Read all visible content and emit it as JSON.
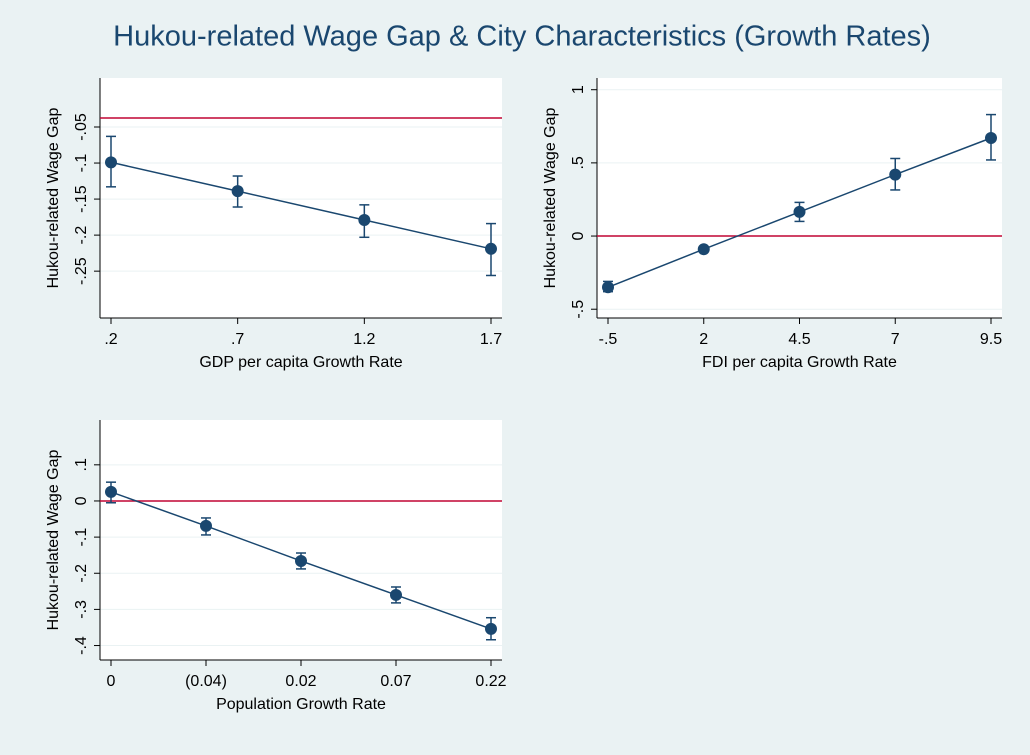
{
  "title": "Hukou-related Wage Gap & City Characteristics (Growth Rates)",
  "chart_data": [
    {
      "type": "line",
      "categories": [
        ".2",
        ".7",
        "1.2",
        "1.7"
      ],
      "xlabel": "GDP per capita Growth Rate",
      "ylabel": "Hukou-related Wage Gap",
      "values": [
        -0.099,
        -0.139,
        -0.179,
        -0.219
      ],
      "lower": [
        -0.133,
        -0.161,
        -0.203,
        -0.256
      ],
      "upper": [
        -0.063,
        -0.118,
        -0.158,
        -0.184
      ],
      "color": "#1a476f",
      "reference_line": -0.0375,
      "reference_color": "#c10534",
      "ylim": [
        -0.315,
        0.018
      ],
      "yticks": [
        {
          "value": -0.25,
          "label": "-.25"
        },
        {
          "value": -0.2,
          "label": "-.2"
        },
        {
          "value": -0.15,
          "label": "-.15"
        },
        {
          "value": -0.1,
          "label": "-.1"
        },
        {
          "value": -0.05,
          "label": "-.05"
        }
      ],
      "grid": true
    },
    {
      "type": "line",
      "categories": [
        "-.5",
        "2",
        "4.5",
        "7",
        "9.5"
      ],
      "xlabel": "FDI per capita Growth Rate",
      "ylabel": "Hukou-related Wage Gap",
      "values": [
        -0.35,
        -0.09,
        0.165,
        0.42,
        0.67
      ],
      "lower": [
        -0.38,
        -0.1,
        0.1,
        0.315,
        0.52
      ],
      "upper": [
        -0.31,
        -0.08,
        0.23,
        0.53,
        0.83
      ],
      "color": "#1a476f",
      "reference_line": 0,
      "reference_color": "#c10534",
      "ylim": [
        -0.56,
        1.08
      ],
      "yticks": [
        {
          "value": -0.5,
          "label": "-.5"
        },
        0,
        {
          "value": 0.5,
          "label": ".5"
        },
        1
      ],
      "grid": true
    },
    {
      "type": "line",
      "categories": [
        "0",
        "(0.04)",
        "0.02",
        "0.07",
        "0.22"
      ],
      "xlabel": "Population Growth Rate",
      "ylabel": "Hukou-related Wage Gap",
      "values": [
        0.025,
        -0.069,
        -0.166,
        -0.26,
        -0.354
      ],
      "lower": [
        -0.005,
        -0.094,
        -0.188,
        -0.282,
        -0.384
      ],
      "upper": [
        0.052,
        -0.047,
        -0.144,
        -0.238,
        -0.323
      ],
      "color": "#1a476f",
      "reference_line": 0,
      "reference_color": "#c10534",
      "ylim": [
        -0.44,
        0.224
      ],
      "yticks": [
        {
          "value": -0.4,
          "label": "-.4"
        },
        {
          "value": -0.3,
          "label": "-.3"
        },
        {
          "value": -0.2,
          "label": "-.2"
        },
        {
          "value": -0.1,
          "label": "-.1"
        },
        0,
        {
          "value": 0.1,
          "label": ".1"
        }
      ],
      "grid": true
    }
  ]
}
